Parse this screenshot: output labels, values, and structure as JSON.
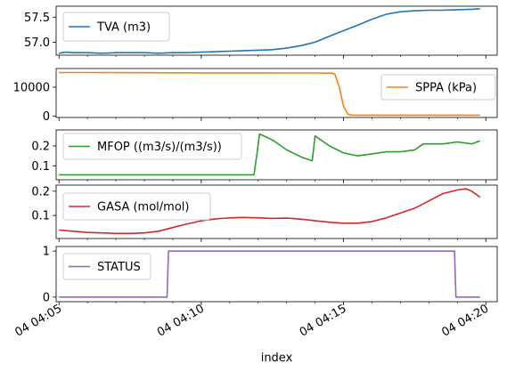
{
  "chart_data": {
    "type": "line",
    "xlabel": "index",
    "x_ticks": [
      "04 04:05",
      "04 04:10",
      "04 04:15",
      "04 04:20"
    ],
    "x_range_minutes": [
      4.9,
      20.4
    ],
    "panels": [
      {
        "name": "TVA (m3)",
        "legend_loc": "upper left",
        "color": "#1f77b4",
        "ylim": [
          56.74,
          57.72
        ],
        "yticks": [
          57.0,
          57.5
        ],
        "ytick_labels": [
          "57.0",
          "57.5"
        ],
        "points": [
          [
            5.0,
            56.78
          ],
          [
            5.25,
            56.8
          ],
          [
            5.5,
            56.79
          ],
          [
            6.0,
            56.79
          ],
          [
            6.5,
            56.78
          ],
          [
            7.0,
            56.79
          ],
          [
            7.5,
            56.79
          ],
          [
            8.0,
            56.79
          ],
          [
            8.5,
            56.78
          ],
          [
            9.0,
            56.79
          ],
          [
            9.5,
            56.79
          ],
          [
            10.0,
            56.8
          ],
          [
            10.5,
            56.81
          ],
          [
            11.0,
            56.82
          ],
          [
            11.5,
            56.83
          ],
          [
            12.0,
            56.84
          ],
          [
            12.5,
            56.85
          ],
          [
            13.0,
            56.88
          ],
          [
            13.5,
            56.93
          ],
          [
            14.0,
            57.0
          ],
          [
            14.5,
            57.12
          ],
          [
            15.0,
            57.23
          ],
          [
            15.5,
            57.34
          ],
          [
            16.0,
            57.46
          ],
          [
            16.5,
            57.56
          ],
          [
            17.0,
            57.61
          ],
          [
            17.5,
            57.63
          ],
          [
            18.0,
            57.64
          ],
          [
            18.5,
            57.64
          ],
          [
            19.0,
            57.65
          ],
          [
            19.5,
            57.66
          ],
          [
            19.8,
            57.67
          ]
        ]
      },
      {
        "name": "SPPA (kPa)",
        "legend_loc": "upper right",
        "color": "#ff7f0e",
        "ylim": [
          -500,
          16500
        ],
        "yticks": [
          0,
          10000
        ],
        "ytick_labels": [
          "0",
          "10000"
        ],
        "points": [
          [
            5.0,
            15100
          ],
          [
            6.0,
            15100
          ],
          [
            8.0,
            15050
          ],
          [
            10.0,
            15000
          ],
          [
            12.0,
            15000
          ],
          [
            13.0,
            14950
          ],
          [
            14.0,
            14950
          ],
          [
            14.6,
            14900
          ],
          [
            14.7,
            14500
          ],
          [
            14.85,
            10000
          ],
          [
            15.0,
            3500
          ],
          [
            15.15,
            700
          ],
          [
            15.3,
            300
          ],
          [
            16.0,
            300
          ],
          [
            18.0,
            300
          ],
          [
            19.8,
            300
          ]
        ]
      },
      {
        "name": "MFOP ((m3/s)/(m3/s))",
        "legend_loc": "upper left",
        "color": "#2ca02c",
        "ylim": [
          0.03,
          0.28
        ],
        "yticks": [
          0.1,
          0.2
        ],
        "ytick_labels": [
          "0.1",
          "0.2"
        ],
        "points": [
          [
            5.0,
            0.055
          ],
          [
            8.0,
            0.055
          ],
          [
            11.0,
            0.055
          ],
          [
            11.85,
            0.055
          ],
          [
            11.95,
            0.15
          ],
          [
            12.05,
            0.26
          ],
          [
            12.5,
            0.23
          ],
          [
            13.0,
            0.18
          ],
          [
            13.5,
            0.145
          ],
          [
            13.9,
            0.125
          ],
          [
            14.0,
            0.25
          ],
          [
            14.5,
            0.2
          ],
          [
            15.0,
            0.165
          ],
          [
            15.5,
            0.15
          ],
          [
            16.0,
            0.16
          ],
          [
            16.5,
            0.17
          ],
          [
            17.0,
            0.17
          ],
          [
            17.5,
            0.18
          ],
          [
            17.8,
            0.21
          ],
          [
            18.5,
            0.21
          ],
          [
            19.0,
            0.22
          ],
          [
            19.5,
            0.21
          ],
          [
            19.8,
            0.225
          ]
        ]
      },
      {
        "name": "GASA (mol/mol)",
        "legend_loc": "upper left",
        "color": "#d62728",
        "ylim": [
          0.005,
          0.225
        ],
        "yticks": [
          0.1,
          0.2
        ],
        "ytick_labels": [
          "0.1",
          "0.2"
        ],
        "points": [
          [
            5.0,
            0.04
          ],
          [
            5.5,
            0.035
          ],
          [
            6.0,
            0.03
          ],
          [
            6.5,
            0.028
          ],
          [
            7.0,
            0.026
          ],
          [
            7.5,
            0.026
          ],
          [
            8.0,
            0.028
          ],
          [
            8.5,
            0.035
          ],
          [
            9.0,
            0.05
          ],
          [
            9.5,
            0.065
          ],
          [
            10.0,
            0.078
          ],
          [
            10.5,
            0.086
          ],
          [
            11.0,
            0.09
          ],
          [
            11.5,
            0.092
          ],
          [
            12.0,
            0.09
          ],
          [
            12.5,
            0.088
          ],
          [
            13.0,
            0.089
          ],
          [
            13.5,
            0.085
          ],
          [
            14.0,
            0.078
          ],
          [
            14.5,
            0.072
          ],
          [
            15.0,
            0.068
          ],
          [
            15.5,
            0.068
          ],
          [
            16.0,
            0.075
          ],
          [
            16.5,
            0.09
          ],
          [
            17.0,
            0.11
          ],
          [
            17.5,
            0.13
          ],
          [
            18.0,
            0.16
          ],
          [
            18.5,
            0.19
          ],
          [
            19.0,
            0.205
          ],
          [
            19.3,
            0.21
          ],
          [
            19.5,
            0.2
          ],
          [
            19.8,
            0.175
          ]
        ]
      },
      {
        "name": "STATUS",
        "legend_loc": "upper left",
        "color": "#9467bd",
        "ylim": [
          -0.1,
          1.1
        ],
        "yticks": [
          0,
          1
        ],
        "ytick_labels": [
          "0",
          "1"
        ],
        "points": [
          [
            5.0,
            0
          ],
          [
            8.8,
            0
          ],
          [
            8.85,
            1
          ],
          [
            18.9,
            1
          ],
          [
            18.95,
            0
          ],
          [
            19.8,
            0
          ]
        ]
      }
    ]
  }
}
